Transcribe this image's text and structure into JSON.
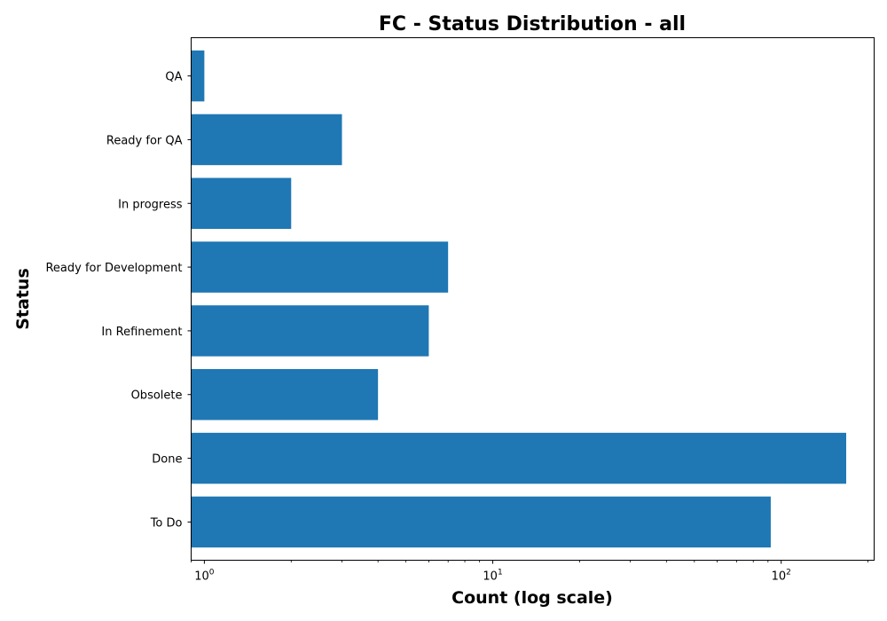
{
  "chart_data": {
    "type": "bar",
    "orientation": "horizontal",
    "title": "FC - Status Distribution - all",
    "xlabel": "Count (log scale)",
    "ylabel": "Status",
    "xscale": "log",
    "xlim": [
      0.9,
      210
    ],
    "x_ticks": [
      {
        "base": "10",
        "exp": "0",
        "value": 1
      },
      {
        "base": "10",
        "exp": "1",
        "value": 10
      },
      {
        "base": "10",
        "exp": "2",
        "value": 100
      }
    ],
    "categories": [
      "QA",
      "Ready for QA",
      "In progress",
      "Ready for Development",
      "In Refinement",
      "Obsolete",
      "Done",
      "To Do"
    ],
    "values": [
      1,
      3,
      2,
      7,
      6,
      4,
      168,
      92
    ],
    "color": "#1f77b4",
    "grid": false,
    "legend": "none"
  }
}
